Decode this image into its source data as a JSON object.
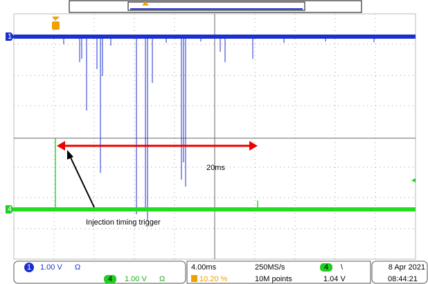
{
  "channels": [
    {
      "number": "1",
      "scale": "1.00 V",
      "coupling": "Ω"
    },
    {
      "number": "4",
      "scale": "1.00 V",
      "coupling": "Ω"
    }
  ],
  "timebase": {
    "horizontal": "4.00ms",
    "trigger_position": "10.20 %",
    "sample_rate": "250MS/s",
    "record_length": "10M points"
  },
  "trigger": {
    "channel": "4",
    "slope": "\\",
    "level": "1.04 V"
  },
  "date": "8 Apr 2021",
  "time": "08:44:21",
  "annotations": {
    "interval": "20ms",
    "label": "Injection timing trigger"
  }
}
